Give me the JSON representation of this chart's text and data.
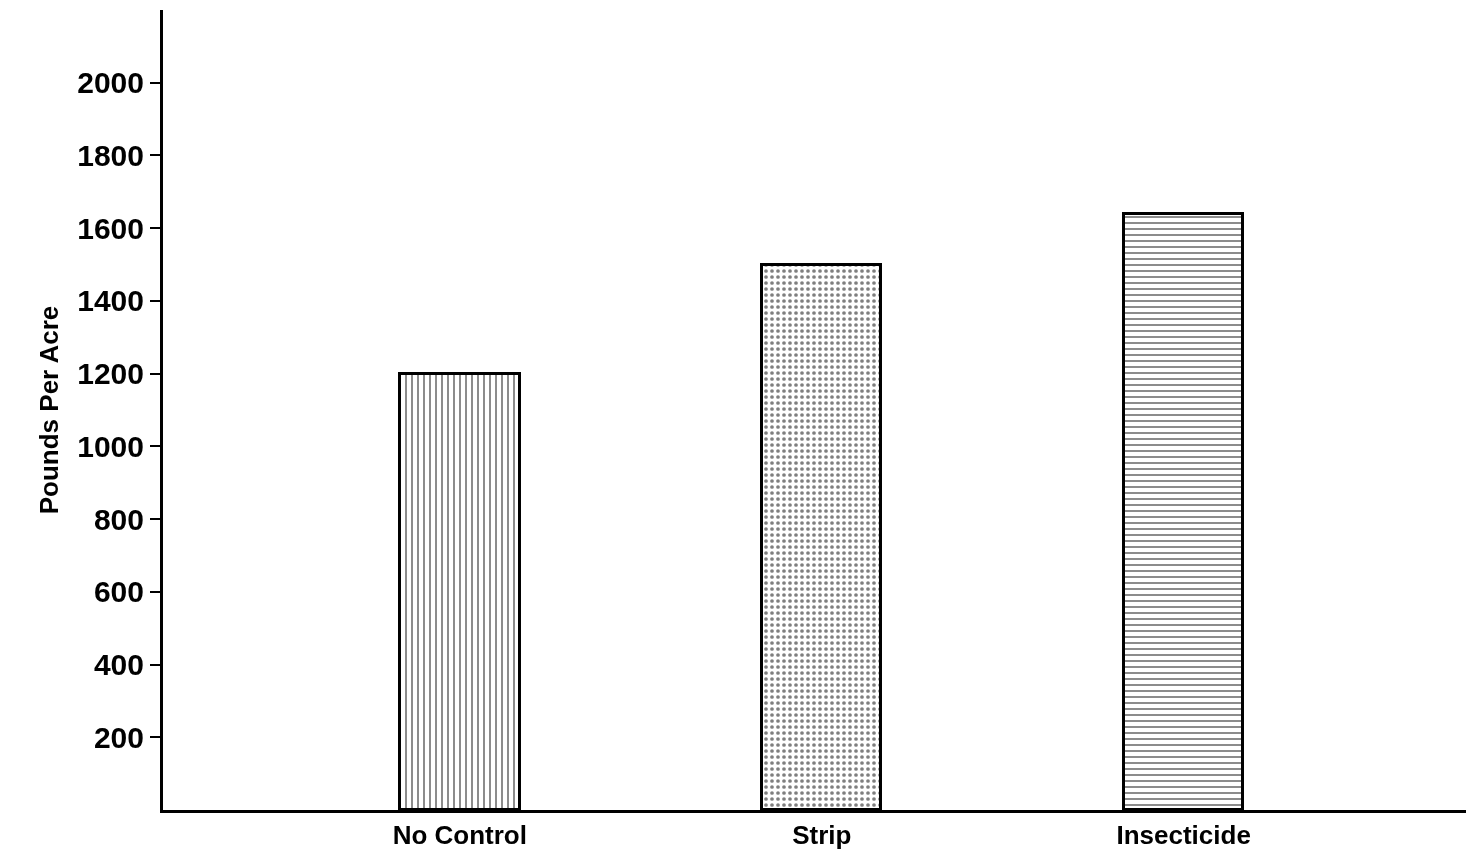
{
  "chart_data": {
    "type": "bar",
    "ylabel": "Pounds Per Acre",
    "categories": [
      "No Control",
      "Strip",
      "Insecticide"
    ],
    "values": [
      1200,
      1500,
      1640
    ],
    "color": "#000000",
    "ylim": [
      0,
      2200
    ],
    "yticks": [
      200,
      400,
      600,
      800,
      1000,
      1200,
      1400,
      1600,
      1800,
      2000
    ],
    "tick_labels": "xy"
  }
}
